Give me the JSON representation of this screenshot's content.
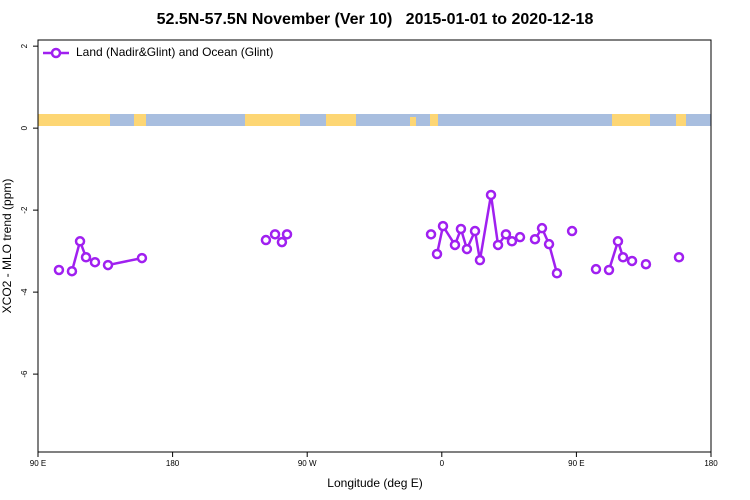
{
  "chart_data": {
    "type": "line",
    "title": "52.5N-57.5N November (Ver 10)   2015-01-01 to 2020-12-18",
    "x_label": "Longitude (deg E)",
    "y_label": "XCO2 - MLO trend (ppm)",
    "xlim": [
      90,
      540
    ],
    "ylim": [
      -7.9,
      2.15
    ],
    "xticks": [
      {
        "value": 90,
        "label": "90 E"
      },
      180,
      {
        "value": 270,
        "label": "90 W"
      },
      {
        "value": 360,
        "label": "0"
      },
      {
        "value": 450,
        "label": "90 E"
      },
      {
        "value": 540,
        "label": "180"
      }
    ],
    "yticks": [
      2,
      0,
      -2,
      -4,
      -6
    ],
    "x": [
      104.0,
      null,
      112.7,
      118.1,
      122.1,
      128.1,
      null,
      136.8,
      159.5,
      null,
      242.4,
      null,
      248.5,
      null,
      253.1,
      null,
      256.5,
      null,
      352.8,
      null,
      356.8,
      360.8,
      368.8,
      372.8,
      376.8,
      382.2,
      385.5,
      392.9,
      397.6,
      402.9,
      406.9,
      412.3,
      null,
      422.3,
      427.0,
      431.7,
      437.0,
      null,
      447.1,
      null,
      463.1,
      null,
      471.8,
      477.8,
      481.2,
      487.2,
      null,
      496.5,
      null,
      518.6
    ],
    "series": [
      {
        "name": "Land (Nadir&Glint) and Ocean (Glint)",
        "color": "#a020f0",
        "values": [
          -3.46,
          null,
          -3.49,
          -2.76,
          -3.15,
          -3.27,
          null,
          -3.34,
          -3.17,
          null,
          -2.73,
          null,
          -2.59,
          null,
          -2.78,
          null,
          -2.59,
          null,
          -2.59,
          null,
          -3.07,
          -2.39,
          -2.85,
          -2.46,
          -2.95,
          -2.51,
          -3.22,
          -1.63,
          -2.85,
          -2.59,
          -2.76,
          -2.66,
          null,
          -2.71,
          -2.44,
          -2.83,
          -3.54,
          null,
          -2.51,
          null,
          -3.44,
          null,
          -3.46,
          -2.76,
          -3.15,
          -3.24,
          null,
          -3.32,
          null,
          -3.15
        ]
      }
    ],
    "legend": "top-left",
    "grid": false
  }
}
